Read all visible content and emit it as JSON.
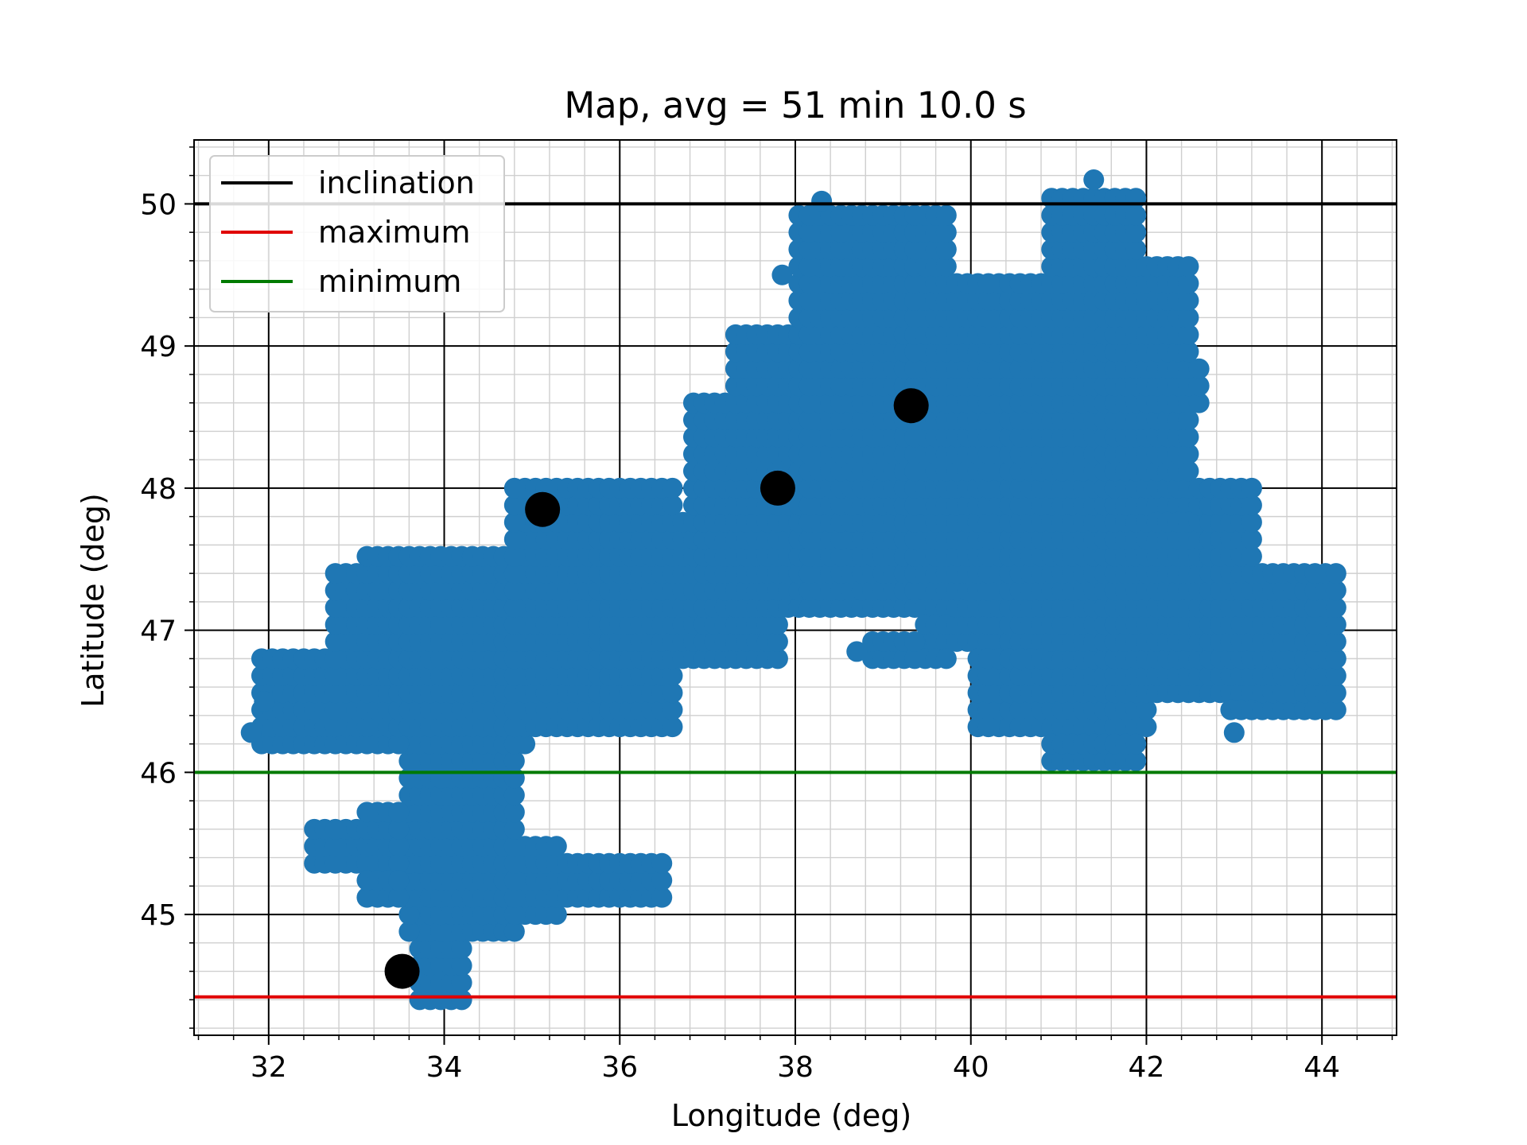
{
  "chart_data": {
    "type": "scatter",
    "title": "Map, avg = 51 min 10.0 s",
    "xlabel": "Longitude (deg)",
    "ylabel": "Latitude (deg)",
    "xlim": [
      31.15,
      44.85
    ],
    "ylim": [
      44.15,
      50.45
    ],
    "x_ticks": [
      {
        "value": 32,
        "label": "32"
      },
      {
        "value": 34,
        "label": "34"
      },
      {
        "value": 36,
        "label": "36"
      },
      {
        "value": 38,
        "label": "38"
      },
      {
        "value": 40,
        "label": "40"
      },
      {
        "value": 42,
        "label": "42"
      },
      {
        "value": 44,
        "label": "44"
      }
    ],
    "y_ticks": [
      {
        "value": 45,
        "label": "45"
      },
      {
        "value": 46,
        "label": "46"
      },
      {
        "value": 47,
        "label": "47"
      },
      {
        "value": 48,
        "label": "48"
      },
      {
        "value": 49,
        "label": "49"
      },
      {
        "value": 50,
        "label": "50"
      }
    ],
    "grid": {
      "major": true,
      "minor": true,
      "minor_step_x": 0.4,
      "minor_step_y": 0.2
    },
    "hlines": [
      {
        "name": "inclination",
        "y": 50.0,
        "color": "#000000"
      },
      {
        "name": "maximum",
        "y": 44.42,
        "color": "#e00000"
      },
      {
        "name": "minimum",
        "y": 46.0,
        "color": "#007a00"
      }
    ],
    "legend": {
      "position": "top-left",
      "entries": [
        {
          "label": "inclination",
          "color": "#000000"
        },
        {
          "label": "maximum",
          "color": "#e00000"
        },
        {
          "label": "minimum",
          "color": "#007a00"
        }
      ]
    },
    "coverage": {
      "color": "#1f77b4",
      "grid_step": 0.12,
      "regions": [
        {
          "x": [
            33.7,
            34.3
          ],
          "y": [
            44.4,
            45.0
          ]
        },
        {
          "x": [
            33.6,
            34.9
          ],
          "y": [
            44.8,
            46.2
          ]
        },
        {
          "x": [
            32.5,
            33.7
          ],
          "y": [
            45.3,
            45.7
          ]
        },
        {
          "x": [
            33.1,
            34.0
          ],
          "y": [
            45.1,
            45.8
          ]
        },
        {
          "x": [
            34.6,
            35.3
          ],
          "y": [
            45.0,
            45.5
          ]
        },
        {
          "x": [
            35.2,
            36.5
          ],
          "y": [
            45.05,
            45.4
          ]
        },
        {
          "x": [
            31.9,
            32.8
          ],
          "y": [
            46.15,
            46.8
          ]
        },
        {
          "x": [
            32.7,
            35.0
          ],
          "y": [
            46.1,
            47.5
          ]
        },
        {
          "x": [
            33.1,
            36.7
          ],
          "y": [
            46.3,
            47.6
          ]
        },
        {
          "x": [
            34.8,
            36.7
          ],
          "y": [
            46.4,
            48.05
          ]
        },
        {
          "x": [
            35.6,
            37.9
          ],
          "y": [
            46.7,
            47.85
          ]
        },
        {
          "x": [
            36.8,
            38.8
          ],
          "y": [
            47.1,
            48.6
          ]
        },
        {
          "x": [
            37.3,
            38.8
          ],
          "y": [
            47.8,
            49.1
          ]
        },
        {
          "x": [
            38.0,
            39.8
          ],
          "y": [
            47.1,
            49.95
          ]
        },
        {
          "x": [
            39.4,
            40.8
          ],
          "y": [
            46.9,
            49.5
          ]
        },
        {
          "x": [
            38.8,
            39.8
          ],
          "y": [
            46.7,
            47.0
          ]
        },
        {
          "x": [
            40.0,
            42.0
          ],
          "y": [
            46.2,
            48.0
          ]
        },
        {
          "x": [
            40.9,
            41.9
          ],
          "y": [
            46.0,
            50.1
          ]
        },
        {
          "x": [
            41.2,
            42.5
          ],
          "y": [
            47.8,
            49.6
          ]
        },
        {
          "x": [
            41.9,
            42.7
          ],
          "y": [
            48.6,
            48.9
          ]
        },
        {
          "x": [
            41.9,
            43.2
          ],
          "y": [
            46.5,
            48.0
          ]
        },
        {
          "x": [
            42.9,
            44.2
          ],
          "y": [
            46.35,
            47.4
          ]
        },
        {
          "x": [
            43.6,
            44.25
          ],
          "y": [
            46.9,
            47.5
          ]
        }
      ],
      "outliers": [
        {
          "x": 31.8,
          "y": 46.28
        },
        {
          "x": 31.95,
          "y": 46.5
        },
        {
          "x": 38.3,
          "y": 50.02
        },
        {
          "x": 41.4,
          "y": 50.17
        },
        {
          "x": 43.0,
          "y": 46.28
        },
        {
          "x": 38.7,
          "y": 46.85
        },
        {
          "x": 37.85,
          "y": 49.5
        }
      ]
    },
    "markers": [
      {
        "x": 33.52,
        "y": 44.6
      },
      {
        "x": 35.12,
        "y": 47.85
      },
      {
        "x": 37.8,
        "y": 48.0
      },
      {
        "x": 39.32,
        "y": 48.58
      }
    ],
    "marker_color": "#000000"
  }
}
